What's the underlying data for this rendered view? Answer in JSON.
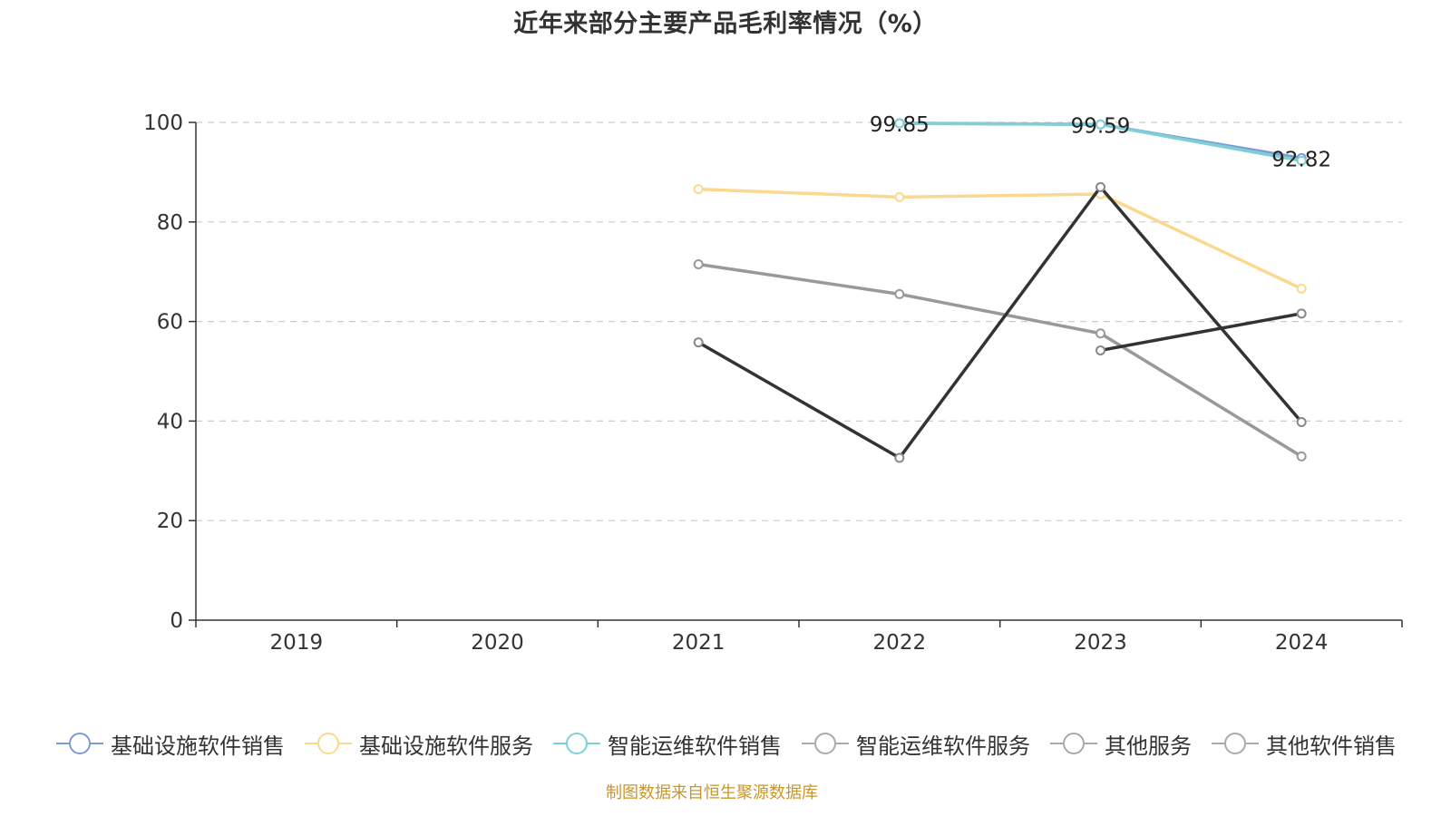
{
  "chart_data": {
    "type": "line",
    "title": "近年来部分主要产品毛利率情况（%）",
    "xlabel": "",
    "ylabel": "",
    "categories": [
      "2019",
      "2020",
      "2021",
      "2022",
      "2023",
      "2024"
    ],
    "ylim": [
      0,
      100
    ],
    "yticks": [
      0,
      20,
      40,
      60,
      80,
      100
    ],
    "grid": true,
    "legend_position": "bottom",
    "series": [
      {
        "name": "基础设施软件销售",
        "color": "#7b9bd8",
        "values": [
          null,
          null,
          null,
          99.85,
          99.59,
          92.82
        ]
      },
      {
        "name": "基础设施软件服务",
        "color": "#fad98e",
        "values": [
          null,
          null,
          86.6,
          85.0,
          85.6,
          66.6
        ]
      },
      {
        "name": "智能运维软件销售",
        "color": "#7ed0d5",
        "values": [
          null,
          null,
          null,
          99.8,
          99.6,
          92.3
        ]
      },
      {
        "name": "智能运维软件服务",
        "color": "#999999",
        "values": [
          null,
          null,
          71.5,
          65.5,
          57.6,
          32.9
        ]
      },
      {
        "name": "其他服务",
        "color": "#333333",
        "values": [
          null,
          null,
          55.8,
          32.6,
          87.0,
          39.8
        ]
      },
      {
        "name": "其他软件销售",
        "color": "#333333",
        "values": [
          null,
          null,
          null,
          null,
          54.2,
          61.6
        ]
      }
    ],
    "data_labels": [
      {
        "series": 0,
        "index": 3,
        "text": "99.85"
      },
      {
        "series": 0,
        "index": 4,
        "text": "99.59"
      },
      {
        "series": 0,
        "index": 5,
        "text": "92.82"
      }
    ],
    "legend_swatch_color": "#aaaaaa"
  },
  "source": "制图数据来自恒生聚源数据库"
}
